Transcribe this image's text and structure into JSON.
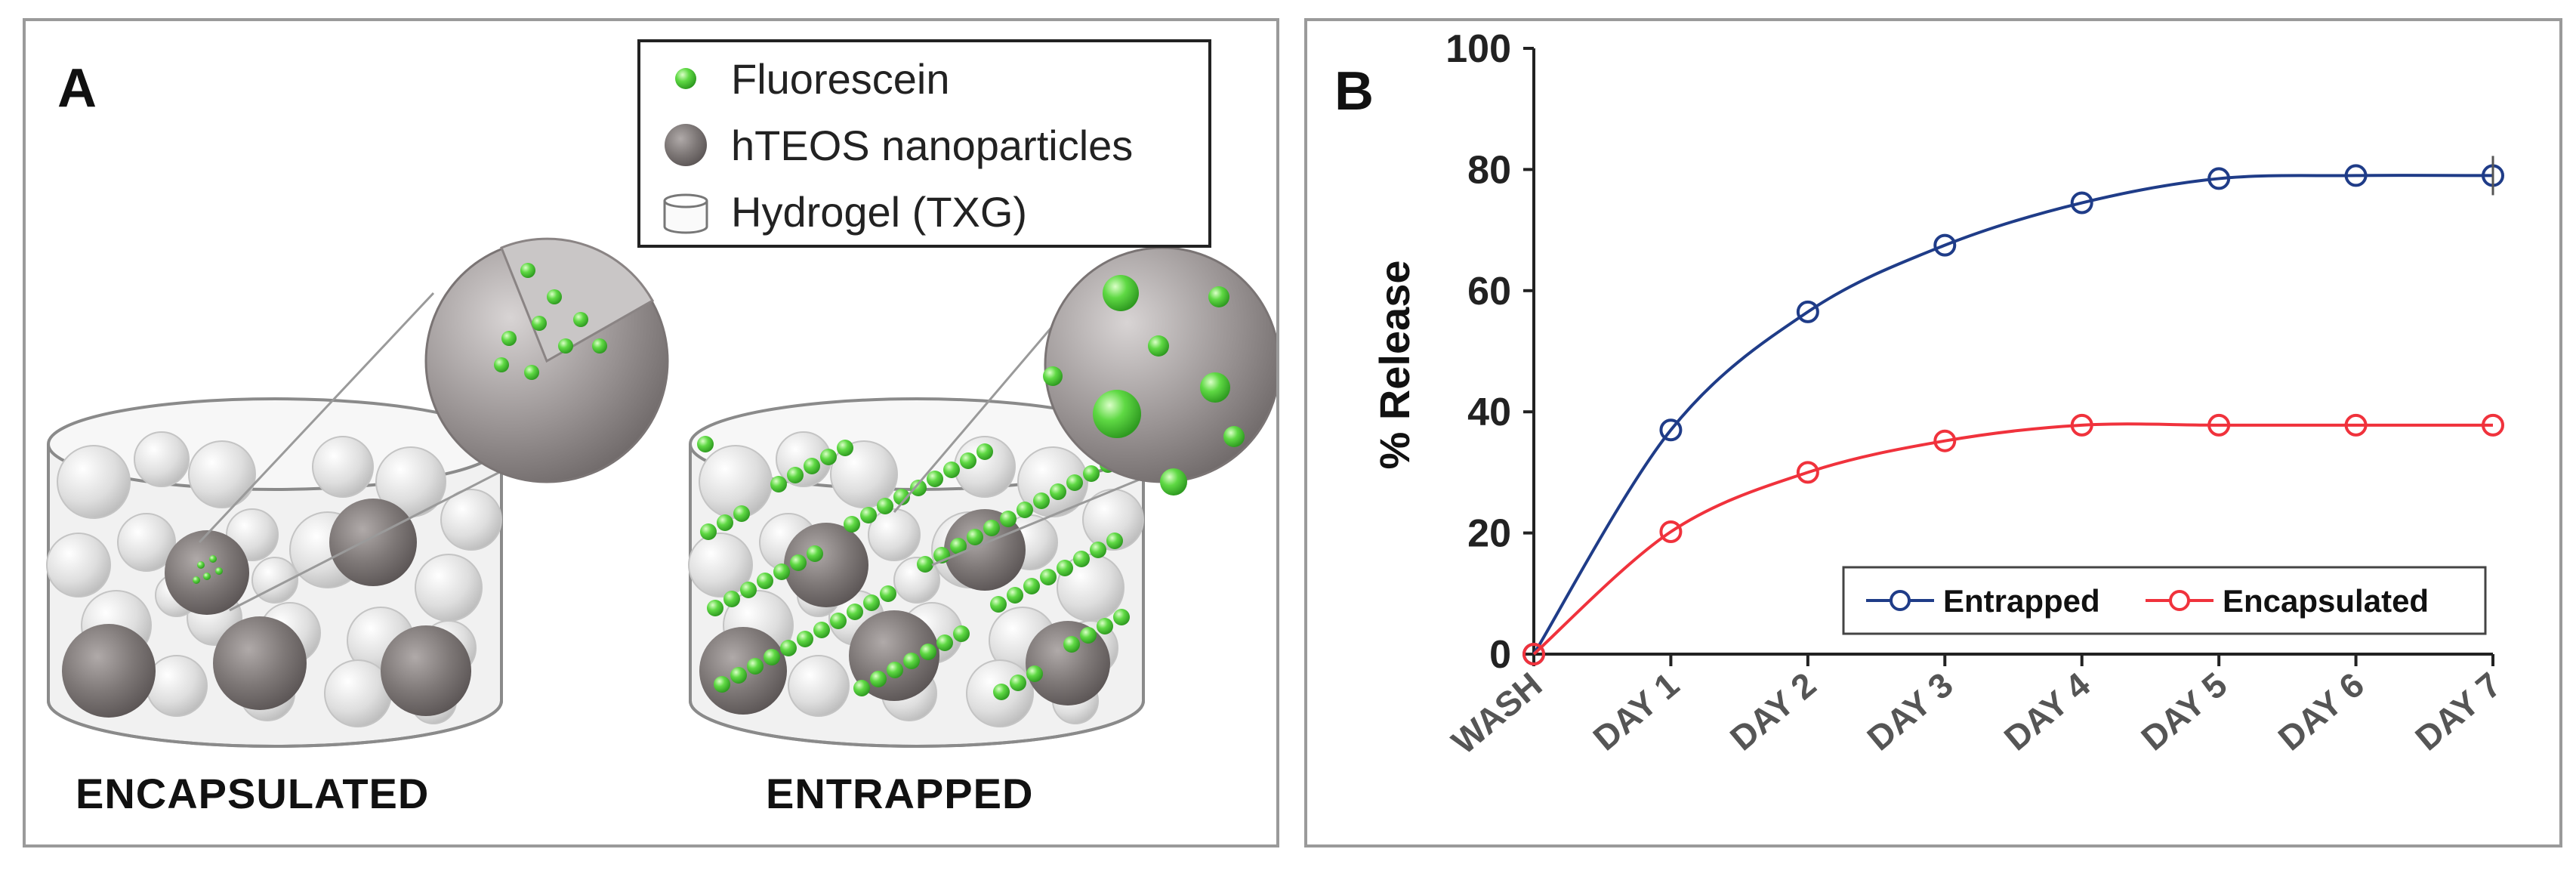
{
  "panel_a": {
    "letter": "A",
    "legend": {
      "fluorescein": "Fluorescein",
      "nanoparticles": "hTEOS nanoparticles",
      "hydrogel": "Hydrogel (TXG)"
    },
    "label_left": "ENCAPSULATED",
    "label_right": "ENTRAPPED",
    "colors": {
      "green": "#4cd13a",
      "particle_dark": "#7b7676",
      "particle_light": "#d6d6d6"
    }
  },
  "panel_b": {
    "letter": "B"
  },
  "chart_data": {
    "type": "line",
    "title": "",
    "xlabel": "",
    "ylabel": "% Release",
    "categories": [
      "WASH",
      "DAY 1",
      "DAY 2",
      "DAY 3",
      "DAY 4",
      "DAY 5",
      "DAY 6",
      "DAY 7"
    ],
    "ylim": [
      0,
      100
    ],
    "yticks": [
      0,
      20,
      40,
      60,
      80,
      100
    ],
    "grid": false,
    "legend_position": "bottom-right",
    "series": [
      {
        "name": "Entrapped",
        "color": "#1f3c88",
        "values": [
          0,
          37,
          56.5,
          67.5,
          74.5,
          78.5,
          79,
          79
        ]
      },
      {
        "name": "Encapsulated",
        "color": "#f0323c",
        "values": [
          0,
          20.2,
          30,
          35.2,
          37.8,
          37.8,
          37.8,
          37.8
        ]
      }
    ]
  }
}
